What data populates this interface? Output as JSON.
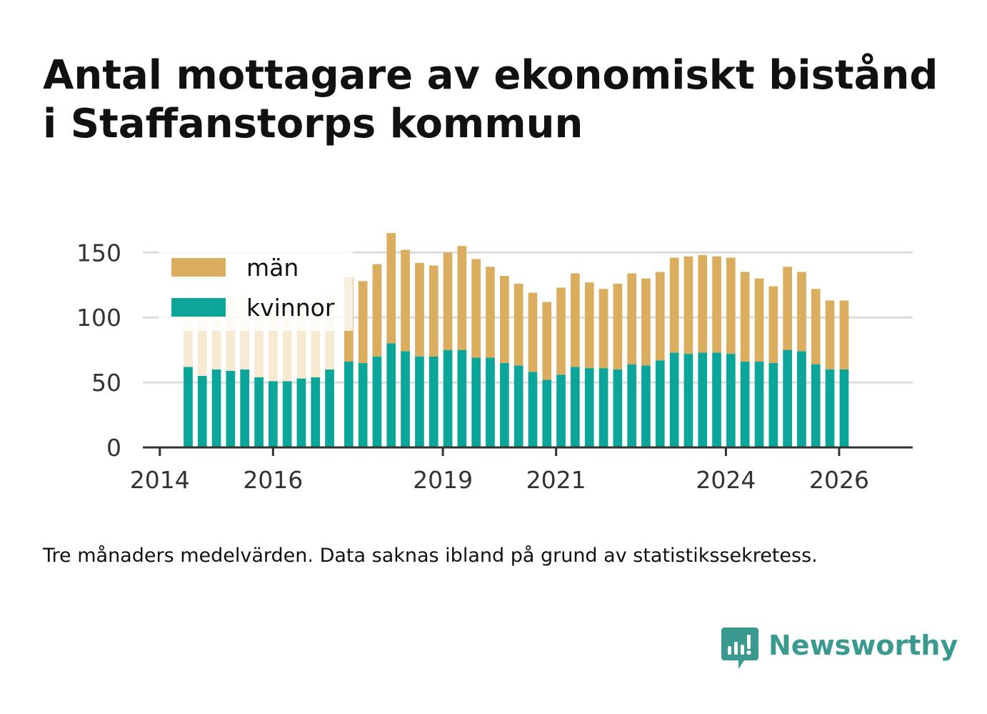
{
  "title_lines": [
    "Antal mottagare av ekonomiskt bistånd",
    "i Staffanstorps kommun"
  ],
  "note": "Tre månaders medelvärden. Data saknas ibland på grund av statistikssekretess.",
  "brand": {
    "name": "Newsworthy",
    "icon": "newsworthy-logo-icon",
    "color": "#3a9a8f"
  },
  "chart_data": {
    "type": "bar",
    "stacked": true,
    "series": [
      {
        "name": "kvinnor",
        "color": "#0ba599",
        "values": [
          62,
          55,
          60,
          59,
          60,
          54,
          51,
          51,
          53,
          54,
          60,
          66,
          65,
          70,
          80,
          74,
          70,
          70,
          75,
          75,
          69,
          69,
          65,
          63,
          58,
          52,
          56,
          62,
          61,
          61,
          60,
          64,
          63,
          67,
          73,
          72,
          73,
          73,
          72,
          66,
          66,
          65,
          75,
          74,
          64,
          60,
          60
        ]
      },
      {
        "name": "män",
        "color": "#dbad5e",
        "values": [
          55,
          56,
          57,
          58,
          57,
          54,
          53,
          63,
          62,
          61,
          58,
          65,
          63,
          71,
          85,
          78,
          72,
          70,
          75,
          80,
          76,
          70,
          67,
          63,
          61,
          60,
          67,
          72,
          66,
          61,
          66,
          70,
          67,
          68,
          73,
          75,
          75,
          74,
          74,
          69,
          64,
          59,
          64,
          61,
          58,
          53,
          53
        ]
      }
    ],
    "faded_through_index": 10,
    "x_first": 2014.5,
    "x_step": 0.25,
    "x_breaks_after": [
      10
    ],
    "xticks": [
      "2014",
      "2016",
      "2019",
      "2021",
      "2024",
      "2026"
    ],
    "xtick_values": [
      2014,
      2016,
      2019,
      2021,
      2024,
      2026
    ],
    "xlim": [
      2013.7,
      2027.3
    ],
    "yticks": [
      "0",
      "50",
      "100",
      "150"
    ],
    "ytick_values": [
      0,
      50,
      100,
      150
    ],
    "ylim": [
      0,
      165
    ],
    "grid": true,
    "legend": "top-left"
  }
}
